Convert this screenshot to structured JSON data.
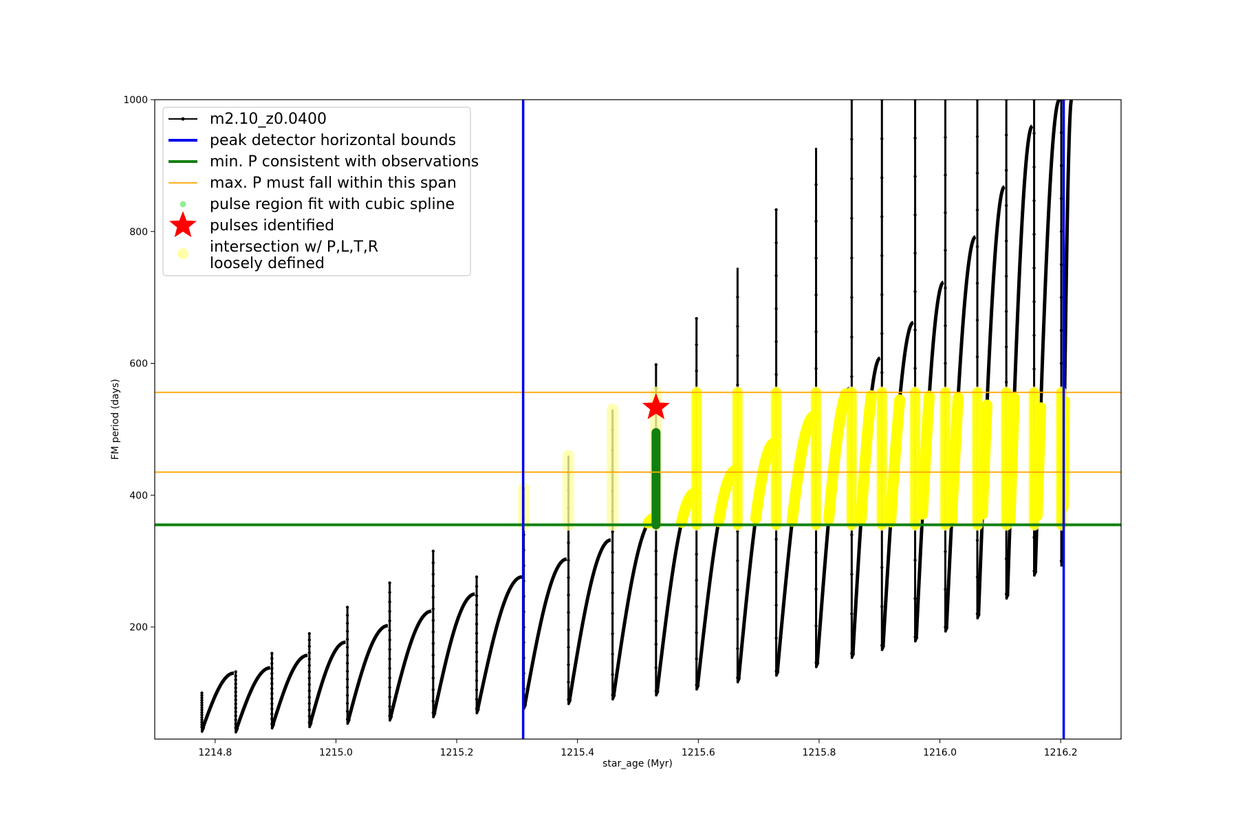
{
  "chart_data": {
    "type": "scatter",
    "xlabel": "star_age (Myr)",
    "ylabel": "FM period (days)",
    "xlim": [
      1214.7,
      1216.3
    ],
    "ylim": [
      30,
      1000
    ],
    "x_ticks": [
      1214.8,
      1215.0,
      1215.2,
      1215.4,
      1215.6,
      1215.8,
      1216.0,
      1216.2
    ],
    "x_tick_labels": [
      "1214.8",
      "1215.0",
      "1215.2",
      "1215.4",
      "1215.6",
      "1215.8",
      "1216.0",
      "1216.2"
    ],
    "y_ticks": [
      200,
      400,
      600,
      800,
      1000
    ],
    "y_tick_labels": [
      "200",
      "400",
      "600",
      "800",
      "1000"
    ],
    "grid": false,
    "legend_position": "upper-left",
    "legend": [
      {
        "key": "track",
        "label": "m2.10_z0.0400",
        "color": "#000000",
        "style": "line-dot"
      },
      {
        "key": "bounds",
        "label": "peak detector horizontal bounds",
        "color": "#0000ee",
        "style": "thick-line"
      },
      {
        "key": "minp",
        "label": "min. P consistent with observations",
        "color": "#118011",
        "style": "thick-line"
      },
      {
        "key": "maxp",
        "label": "max. P must fall within this span",
        "color": "#ffa500",
        "style": "thin-line"
      },
      {
        "key": "spline",
        "label": "pulse region fit with cubic spline",
        "color": "#90ee90",
        "style": "dot"
      },
      {
        "key": "pulses",
        "label": "pulses identified",
        "color": "#ff0000",
        "style": "star"
      },
      {
        "key": "intersect",
        "label": "intersection w/ P,L,T,R\nloosely defined",
        "color": "#ffffa8",
        "style": "faint-dot"
      }
    ],
    "vertical_lines": [
      {
        "name": "peak detector horizontal bounds",
        "x": 1215.31,
        "color": "#0000ee"
      },
      {
        "name": "peak detector horizontal bounds",
        "x": 1216.205,
        "color": "#0000ee"
      }
    ],
    "horizontal_lines": [
      {
        "name": "min. P consistent with observations",
        "y": 355,
        "color": "#118011"
      },
      {
        "name": "max. P must fall within this span",
        "y": 435,
        "color": "#ffa500"
      },
      {
        "name": "max. P must fall within this span",
        "y": 556,
        "color": "#ffa500"
      }
    ],
    "pulse_star": {
      "x": 1215.53,
      "y": 533
    },
    "pulse_fit_segment": {
      "x": 1215.53,
      "y_low": 355,
      "y_high": 495
    },
    "cycles": [
      {
        "start": 1214.778,
        "end": 1214.833,
        "min": 48,
        "max": 130,
        "spike": 100
      },
      {
        "start": 1214.834,
        "end": 1214.893,
        "min": 47,
        "max": 138,
        "spike": 132
      },
      {
        "start": 1214.894,
        "end": 1214.955,
        "min": 53,
        "max": 157,
        "spike": 160
      },
      {
        "start": 1214.956,
        "end": 1215.018,
        "min": 55,
        "max": 177,
        "spike": 190
      },
      {
        "start": 1215.019,
        "end": 1215.088,
        "min": 60,
        "max": 202,
        "spike": 230
      },
      {
        "start": 1215.089,
        "end": 1215.16,
        "min": 65,
        "max": 224,
        "spike": 267
      },
      {
        "start": 1215.161,
        "end": 1215.232,
        "min": 70,
        "max": 250,
        "spike": 315
      },
      {
        "start": 1215.233,
        "end": 1215.31,
        "min": 76,
        "max": 276,
        "spike": 276
      },
      {
        "start": 1215.311,
        "end": 1215.384,
        "min": 83,
        "max": 303,
        "spike": 410
      },
      {
        "start": 1215.385,
        "end": 1215.457,
        "min": 90,
        "max": 332,
        "spike": 460
      },
      {
        "start": 1215.458,
        "end": 1215.529,
        "min": 97,
        "max": 365,
        "spike": 530
      },
      {
        "start": 1215.53,
        "end": 1215.596,
        "min": 103,
        "max": 403,
        "spike": 598
      },
      {
        "start": 1215.597,
        "end": 1215.664,
        "min": 112,
        "max": 438,
        "spike": 668
      },
      {
        "start": 1215.665,
        "end": 1215.728,
        "min": 123,
        "max": 479,
        "spike": 745
      },
      {
        "start": 1215.729,
        "end": 1215.794,
        "min": 133,
        "max": 520,
        "spike": 833
      },
      {
        "start": 1215.795,
        "end": 1215.853,
        "min": 146,
        "max": 562,
        "spike": 927
      },
      {
        "start": 1215.854,
        "end": 1215.903,
        "min": 160,
        "max": 608,
        "spike": 1000
      },
      {
        "start": 1215.904,
        "end": 1215.958,
        "min": 172,
        "max": 662,
        "spike": 1000
      },
      {
        "start": 1215.959,
        "end": 1216.008,
        "min": 185,
        "max": 723,
        "spike": 1000
      },
      {
        "start": 1216.009,
        "end": 1216.061,
        "min": 200,
        "max": 792,
        "spike": 1000
      },
      {
        "start": 1216.062,
        "end": 1216.109,
        "min": 220,
        "max": 868,
        "spike": 1000
      },
      {
        "start": 1216.11,
        "end": 1216.155,
        "min": 250,
        "max": 960,
        "spike": 1000
      },
      {
        "start": 1216.156,
        "end": 1216.2,
        "min": 285,
        "max": 1000,
        "spike": 1000
      },
      {
        "start": 1216.201,
        "end": 1216.22,
        "min": 300,
        "max": 1000,
        "spike": 1000
      }
    ]
  }
}
